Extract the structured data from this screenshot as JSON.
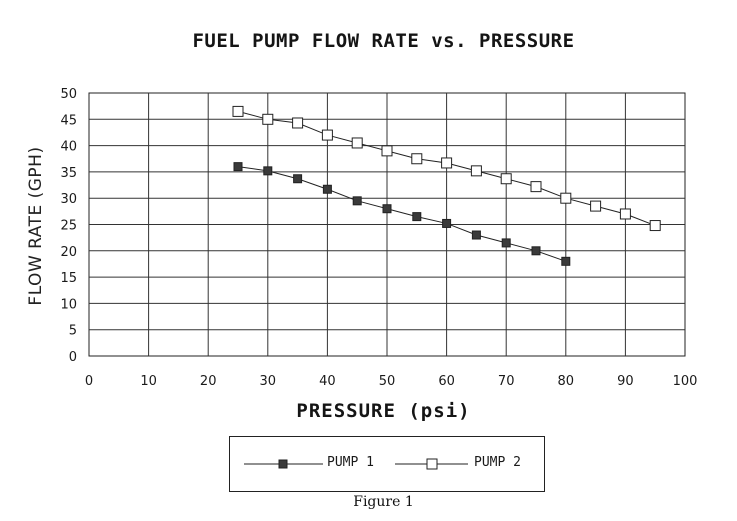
{
  "caption": "Figure 1",
  "chart_data": {
    "type": "line",
    "title": "FUEL PUMP FLOW RATE vs. PRESSURE",
    "xlabel": "PRESSURE (psi)",
    "ylabel": "FLOW RATE (GPH)",
    "xlim": [
      0,
      100
    ],
    "ylim": [
      0,
      50
    ],
    "xticks": [
      0,
      10,
      20,
      30,
      40,
      50,
      60,
      70,
      80,
      90,
      100
    ],
    "yticks": [
      0,
      5,
      10,
      15,
      20,
      25,
      30,
      35,
      40,
      45,
      50
    ],
    "grid": true,
    "legend_position": "bottom-center",
    "series": [
      {
        "name": "PUMP 1",
        "marker": "filled-square",
        "color": "#3a3a3a",
        "x": [
          25,
          30,
          35,
          40,
          45,
          50,
          55,
          60,
          65,
          70,
          75,
          80
        ],
        "y": [
          36,
          35.2,
          33.7,
          31.7,
          29.5,
          28,
          26.5,
          25.2,
          23,
          21.5,
          20,
          18
        ]
      },
      {
        "name": "PUMP 2",
        "marker": "open-square",
        "color": "#ffffff",
        "x": [
          25,
          30,
          35,
          40,
          45,
          50,
          55,
          60,
          65,
          70,
          75,
          80,
          85,
          90,
          95
        ],
        "y": [
          46.5,
          45,
          44.3,
          42,
          40.5,
          39,
          37.5,
          36.7,
          35.2,
          33.7,
          32.2,
          30,
          28.5,
          27,
          24.8
        ]
      }
    ]
  }
}
